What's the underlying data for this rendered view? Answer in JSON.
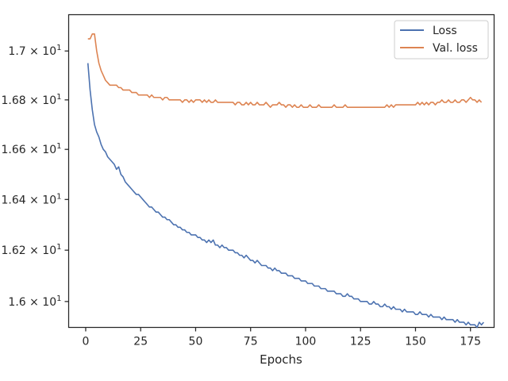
{
  "chart_data": {
    "type": "line",
    "title": "",
    "xlabel": "Epochs",
    "ylabel": "",
    "xlim": [
      -7.75,
      185.75
    ],
    "ylim": [
      15.9,
      17.15
    ],
    "yscale": "log",
    "grid": false,
    "legend": "top-right",
    "x_ticks": [
      0,
      25,
      50,
      75,
      100,
      125,
      150,
      175
    ],
    "y_ticks": [
      {
        "value": 16.0,
        "mantissa": "1.6",
        "base": "10",
        "exp": "1"
      },
      {
        "value": 16.2,
        "mantissa": "1.62",
        "base": "10",
        "exp": "1"
      },
      {
        "value": 16.4,
        "mantissa": "1.64",
        "base": "10",
        "exp": "1"
      },
      {
        "value": 16.6,
        "mantissa": "1.66",
        "base": "10",
        "exp": "1"
      },
      {
        "value": 16.8,
        "mantissa": "1.68",
        "base": "10",
        "exp": "1"
      },
      {
        "value": 17.0,
        "mantissa": "1.7",
        "base": "10",
        "exp": "1"
      }
    ],
    "series": [
      {
        "name": "Loss",
        "color": "#4c72b0",
        "values": [
          16.95,
          16.84,
          16.76,
          16.7,
          16.67,
          16.65,
          16.62,
          16.6,
          16.59,
          16.57,
          16.56,
          16.55,
          16.54,
          16.52,
          16.53,
          16.5,
          16.49,
          16.47,
          16.46,
          16.45,
          16.44,
          16.43,
          16.42,
          16.42,
          16.41,
          16.4,
          16.39,
          16.38,
          16.37,
          16.37,
          16.36,
          16.35,
          16.35,
          16.34,
          16.33,
          16.33,
          16.32,
          16.32,
          16.31,
          16.3,
          16.3,
          16.29,
          16.29,
          16.28,
          16.28,
          16.27,
          16.27,
          16.26,
          16.26,
          16.26,
          16.25,
          16.25,
          16.24,
          16.24,
          16.23,
          16.24,
          16.23,
          16.24,
          16.22,
          16.22,
          16.21,
          16.22,
          16.21,
          16.21,
          16.2,
          16.2,
          16.2,
          16.19,
          16.19,
          16.18,
          16.18,
          16.17,
          16.18,
          16.17,
          16.16,
          16.16,
          16.15,
          16.16,
          16.15,
          16.14,
          16.14,
          16.14,
          16.13,
          16.13,
          16.12,
          16.13,
          16.12,
          16.12,
          16.11,
          16.11,
          16.11,
          16.1,
          16.1,
          16.1,
          16.09,
          16.09,
          16.09,
          16.08,
          16.08,
          16.08,
          16.07,
          16.07,
          16.07,
          16.06,
          16.06,
          16.06,
          16.05,
          16.05,
          16.05,
          16.04,
          16.04,
          16.04,
          16.04,
          16.03,
          16.03,
          16.03,
          16.02,
          16.02,
          16.03,
          16.02,
          16.02,
          16.01,
          16.01,
          16.01,
          16.0,
          16.0,
          16.0,
          16.0,
          15.99,
          15.99,
          16.0,
          15.99,
          15.99,
          15.98,
          15.98,
          15.99,
          15.98,
          15.98,
          15.97,
          15.98,
          15.97,
          15.97,
          15.97,
          15.96,
          15.97,
          15.96,
          15.96,
          15.96,
          15.96,
          15.95,
          15.95,
          15.96,
          15.95,
          15.95,
          15.95,
          15.94,
          15.95,
          15.94,
          15.94,
          15.94,
          15.94,
          15.93,
          15.94,
          15.93,
          15.93,
          15.93,
          15.93,
          15.92,
          15.93,
          15.92,
          15.92,
          15.92,
          15.91,
          15.92,
          15.91,
          15.91,
          15.91,
          15.9,
          15.92,
          15.91,
          15.92
        ]
      },
      {
        "name": "Val. loss",
        "color": "#dd8452",
        "values": [
          17.05,
          17.05,
          17.07,
          17.07,
          17.0,
          16.95,
          16.92,
          16.9,
          16.88,
          16.87,
          16.86,
          16.86,
          16.86,
          16.86,
          16.85,
          16.85,
          16.84,
          16.84,
          16.84,
          16.84,
          16.83,
          16.83,
          16.83,
          16.82,
          16.82,
          16.82,
          16.82,
          16.82,
          16.81,
          16.82,
          16.81,
          16.81,
          16.81,
          16.81,
          16.8,
          16.81,
          16.81,
          16.8,
          16.8,
          16.8,
          16.8,
          16.8,
          16.8,
          16.79,
          16.8,
          16.8,
          16.79,
          16.8,
          16.79,
          16.8,
          16.8,
          16.8,
          16.79,
          16.8,
          16.79,
          16.8,
          16.79,
          16.79,
          16.8,
          16.79,
          16.79,
          16.79,
          16.79,
          16.79,
          16.79,
          16.79,
          16.79,
          16.78,
          16.79,
          16.79,
          16.78,
          16.78,
          16.79,
          16.78,
          16.79,
          16.78,
          16.78,
          16.79,
          16.78,
          16.78,
          16.78,
          16.79,
          16.78,
          16.77,
          16.78,
          16.78,
          16.78,
          16.79,
          16.78,
          16.78,
          16.77,
          16.78,
          16.78,
          16.77,
          16.78,
          16.77,
          16.77,
          16.78,
          16.77,
          16.77,
          16.77,
          16.78,
          16.77,
          16.77,
          16.77,
          16.78,
          16.77,
          16.77,
          16.77,
          16.77,
          16.77,
          16.77,
          16.78,
          16.77,
          16.77,
          16.77,
          16.77,
          16.78,
          16.77,
          16.77,
          16.77,
          16.77,
          16.77,
          16.77,
          16.77,
          16.77,
          16.77,
          16.77,
          16.77,
          16.77,
          16.77,
          16.77,
          16.77,
          16.77,
          16.77,
          16.77,
          16.78,
          16.77,
          16.78,
          16.77,
          16.78,
          16.78,
          16.78,
          16.78,
          16.78,
          16.78,
          16.78,
          16.78,
          16.78,
          16.78,
          16.79,
          16.78,
          16.79,
          16.78,
          16.79,
          16.78,
          16.79,
          16.79,
          16.78,
          16.79,
          16.79,
          16.8,
          16.79,
          16.79,
          16.8,
          16.79,
          16.79,
          16.8,
          16.79,
          16.79,
          16.8,
          16.8,
          16.79,
          16.8,
          16.81,
          16.8,
          16.8,
          16.79,
          16.8,
          16.79
        ]
      }
    ]
  }
}
